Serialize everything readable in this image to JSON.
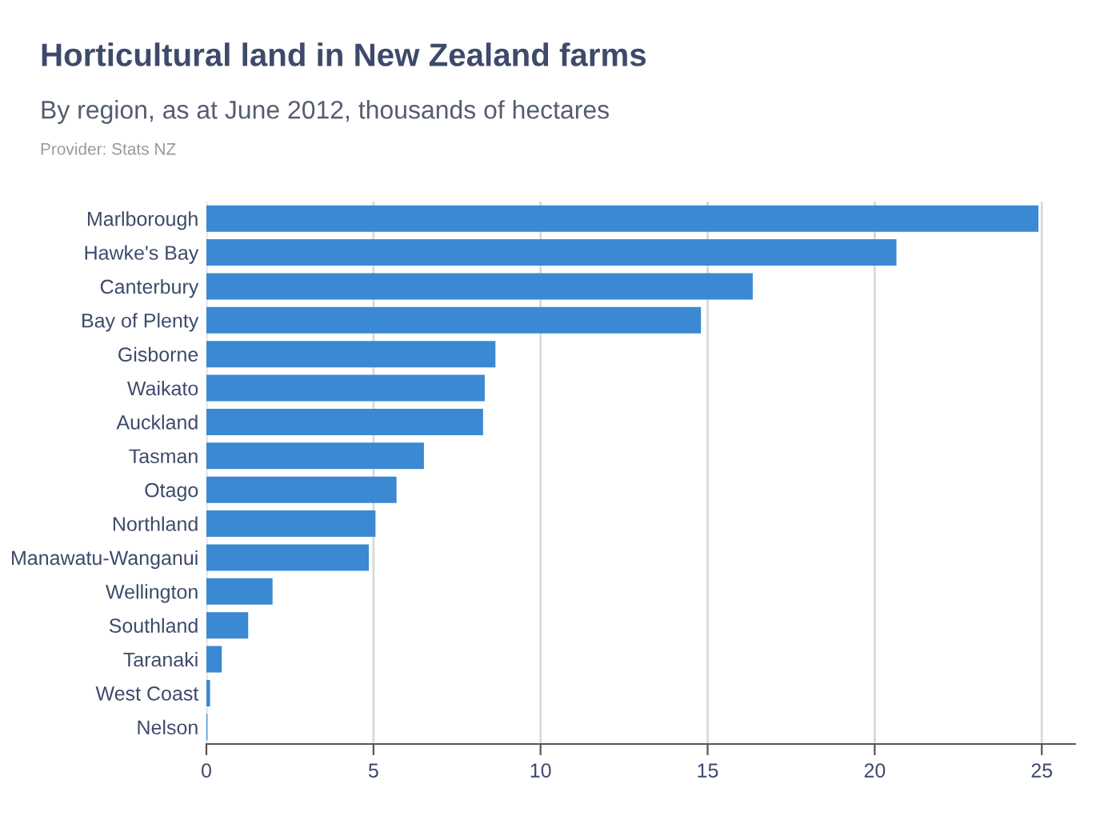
{
  "chart_data": {
    "type": "bar",
    "orientation": "horizontal",
    "title": "Horticultural land in New Zealand farms",
    "subtitle": "By region, as at June 2012, thousands of hectares",
    "annotations": [
      "Provider: Stats NZ"
    ],
    "categories": [
      "Marlborough",
      "Hawke's Bay",
      "Canterbury",
      "Bay of Plenty",
      "Gisborne",
      "Waikato",
      "Auckland",
      "Tasman",
      "Otago",
      "Northland",
      "Manawatu-Wanganui",
      "Wellington",
      "Southland",
      "Taranaki",
      "West Coast",
      "Nelson"
    ],
    "values": [
      24.9,
      20.65,
      16.35,
      14.8,
      8.65,
      8.33,
      8.28,
      6.51,
      5.69,
      5.06,
      4.86,
      1.98,
      1.25,
      0.46,
      0.11,
      0.03
    ],
    "color": "#3a89d2",
    "xlim": [
      0,
      26
    ],
    "xticks": [
      0,
      5,
      10,
      15,
      20,
      25
    ],
    "grid": "x"
  }
}
